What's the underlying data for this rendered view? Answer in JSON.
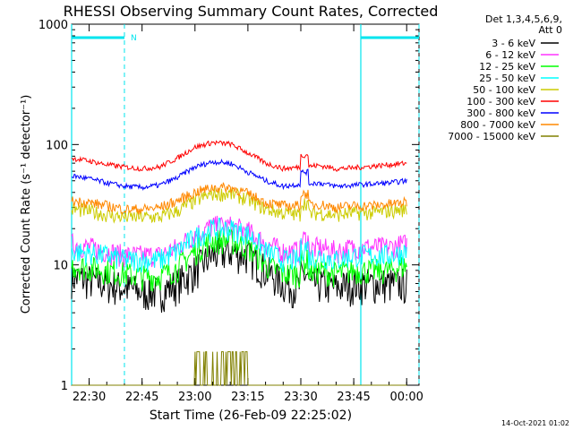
{
  "chart_data": {
    "type": "line",
    "title": "RHESSI Observing Summary Count Rates, Corrected",
    "xlabel": "Start Time (26-Feb-09 22:25:02)",
    "ylabel": "Corrected Count Rate (s⁻¹ detector⁻¹)",
    "yscale": "log",
    "ylim": [
      1,
      1000
    ],
    "xlim": [
      "22:25:02",
      "00:03:30"
    ],
    "x_ticks": [
      "22:30",
      "22:45",
      "23:00",
      "23:15",
      "23:30",
      "23:45",
      "00:00"
    ],
    "y_ticks": [
      "1",
      "10",
      "100",
      "1000"
    ],
    "legend_header": [
      "Det 1,3,4,5,6,9,",
      "Att 0"
    ],
    "legend_position": "outside-right",
    "timestamp": "14-Oct-2021 01:02",
    "x_minutes": [
      0,
      5,
      10,
      15,
      20,
      25,
      30,
      35,
      40,
      45,
      50,
      55,
      60,
      65,
      70,
      75,
      80,
      85,
      90,
      95
    ],
    "series": [
      {
        "name": "3 - 6 keV",
        "color": "#000000",
        "values": [
          8,
          7.5,
          7,
          6.5,
          6,
          6,
          7,
          9,
          12,
          13,
          12,
          9,
          7,
          6.5,
          7,
          6.5,
          7,
          7,
          7,
          7
        ]
      },
      {
        "name": "6 - 12 keV",
        "color": "#ff33ff",
        "values": [
          15,
          14,
          13,
          12,
          12,
          12,
          14,
          18,
          21,
          21,
          19,
          15,
          13,
          13,
          14,
          13,
          14,
          14,
          14,
          15
        ]
      },
      {
        "name": "12 - 25 keV",
        "color": "#00ff00",
        "values": [
          10,
          9.5,
          9,
          8.5,
          8,
          8,
          9.5,
          13,
          16,
          16,
          14,
          10,
          8.5,
          8.5,
          9,
          8.5,
          9,
          9,
          9,
          10
        ]
      },
      {
        "name": "25 - 50 keV",
        "color": "#00ffff",
        "values": [
          13,
          12.5,
          12,
          11,
          11,
          11,
          13,
          17,
          20,
          20,
          18,
          13,
          11,
          11,
          12,
          11,
          12,
          12,
          12,
          13
        ]
      },
      {
        "name": "50 - 100 keV",
        "color": "#cccc00",
        "values": [
          29,
          28,
          26,
          25,
          25,
          25,
          28,
          34,
          39,
          39,
          35,
          29,
          27,
          26,
          27,
          26,
          27,
          27,
          28,
          29
        ]
      },
      {
        "name": "100 - 300 keV",
        "color": "#ff0000",
        "values": [
          77,
          73,
          68,
          65,
          63,
          65,
          77,
          95,
          104,
          101,
          85,
          70,
          63,
          65,
          67,
          63,
          64,
          66,
          68,
          70
        ]
      },
      {
        "name": "300 - 800 keV",
        "color": "#0000ff",
        "values": [
          55,
          52,
          48,
          45,
          44,
          46,
          53,
          65,
          72,
          70,
          59,
          50,
          45,
          47,
          48,
          45,
          46,
          47,
          48,
          50
        ]
      },
      {
        "name": "800 - 7000 keV",
        "color": "#ff8800",
        "values": [
          34,
          33,
          31,
          29,
          29,
          30,
          34,
          40,
          44,
          44,
          39,
          33,
          31,
          31,
          32,
          30,
          31,
          31,
          32,
          33
        ]
      },
      {
        "name": "7000 - 15000 keV",
        "color": "#808000",
        "values": [
          1,
          1,
          1,
          1,
          1,
          1,
          1,
          1.9,
          1.9,
          1.9,
          1,
          1,
          1,
          1,
          1,
          1,
          1,
          1,
          1,
          1
        ]
      }
    ],
    "lines": {
      "data_window_start": "22:25:02",
      "data_window_end": "00:03:30",
      "night_marker_1": "22:40",
      "night_marker_2": "23:47",
      "day_bar_label": "N"
    }
  }
}
